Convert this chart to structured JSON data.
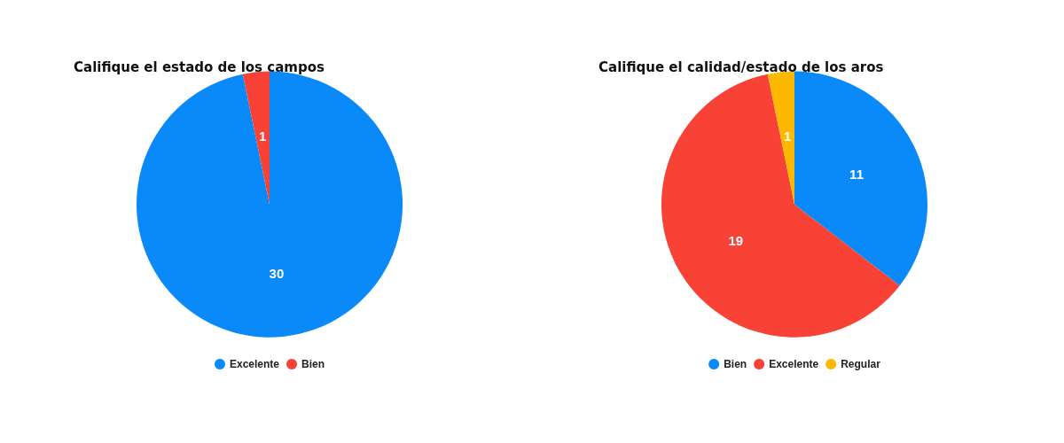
{
  "chart_data": [
    {
      "type": "pie",
      "title": "Califique el estado de los campos",
      "categories": [
        "Excelente",
        "Bien"
      ],
      "values": [
        30,
        1
      ],
      "colors": [
        "#0a8af8",
        "#f94236"
      ],
      "data_labels": true,
      "legend": "bottom"
    },
    {
      "type": "pie",
      "title": "Califique el calidad/estado de los aros",
      "categories": [
        "Bien",
        "Excelente",
        "Regular"
      ],
      "values": [
        11,
        19,
        1
      ],
      "colors": [
        "#0a8af8",
        "#f94236",
        "#fdb900"
      ],
      "data_labels": true,
      "legend": "bottom"
    }
  ]
}
